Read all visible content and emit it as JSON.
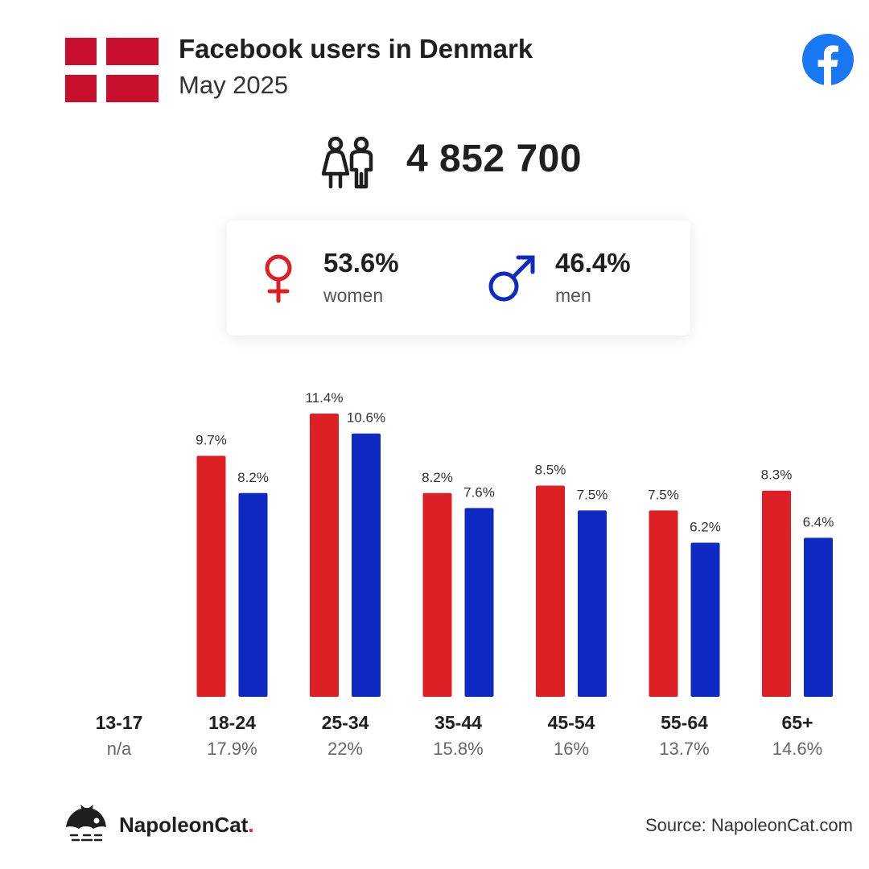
{
  "header": {
    "title": "Facebook users in Denmark",
    "subtitle": "May 2025"
  },
  "icons": {
    "flag": "denmark-flag-icon",
    "platform": "facebook-icon",
    "users": "users-icon",
    "female": "female-symbol-icon",
    "male": "male-symbol-icon",
    "brand_logo": "napoleoncat-logo-icon"
  },
  "colors": {
    "women": "#dd1f26",
    "men": "#0e2ac2",
    "flag_red": "#c8102e",
    "facebook_blue": "#1877f2"
  },
  "summary": {
    "total_users": "4 852 700",
    "women_pct": "53.6%",
    "women_label": "women",
    "men_pct": "46.4%",
    "men_label": "men"
  },
  "chart_data": {
    "type": "bar",
    "title": "",
    "xlabel": "",
    "ylabel": "",
    "ylim": [
      0,
      11.4
    ],
    "grid": false,
    "legend": "none",
    "categories": [
      "13-17",
      "18-24",
      "25-34",
      "35-44",
      "45-54",
      "55-64",
      "65+"
    ],
    "category_totals": [
      "n/a",
      "17.9%",
      "22%",
      "15.8%",
      "16%",
      "13.7%",
      "14.6%"
    ],
    "series": [
      {
        "color": "#dd1f26",
        "values": [
          null,
          9.7,
          11.4,
          8.2,
          8.5,
          7.5,
          8.3
        ],
        "labels": [
          "",
          "9.7%",
          "11.4%",
          "8.2%",
          "8.5%",
          "7.5%",
          "8.3%"
        ]
      },
      {
        "color": "#0e2ac2",
        "values": [
          null,
          8.2,
          10.6,
          7.6,
          7.5,
          6.2,
          6.4
        ],
        "labels": [
          "",
          "8.2%",
          "10.6%",
          "7.6%",
          "7.5%",
          "6.2%",
          "6.4%"
        ]
      }
    ]
  },
  "footer": {
    "brand_name": "NapoleonCat",
    "brand_dot": ".",
    "source": "Source: NapoleonCat.com"
  }
}
